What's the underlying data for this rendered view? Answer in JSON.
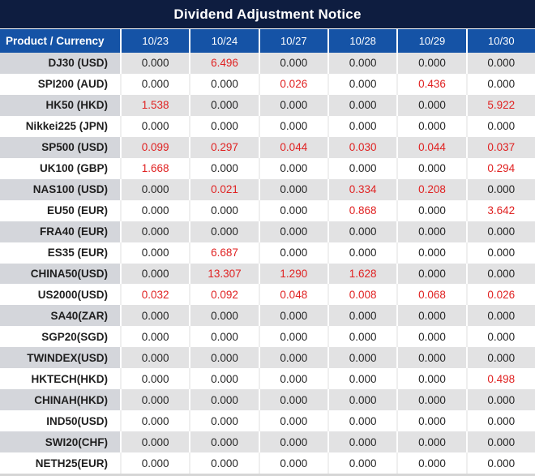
{
  "title": "Dividend Adjustment Notice",
  "colors": {
    "title_bg": "#0e1d40",
    "header_bg": "#1553a6",
    "row_alt_bg": "#e2e2e3",
    "row_alt_product_bg": "#d4d6db",
    "value_red": "#e02222",
    "text_color": "#262626",
    "header_text": "#ffffff"
  },
  "table": {
    "header": {
      "product_label": "Product / Currency",
      "dates": [
        "10/23",
        "10/24",
        "10/27",
        "10/28",
        "10/29",
        "10/30"
      ]
    },
    "rows": [
      {
        "product": "DJ30 (USD)",
        "values": [
          "0.000",
          "6.496",
          "0.000",
          "0.000",
          "0.000",
          "0.000"
        ],
        "red_indices": [
          1
        ]
      },
      {
        "product": "SPI200 (AUD)",
        "values": [
          "0.000",
          "0.000",
          "0.026",
          "0.000",
          "0.436",
          "0.000"
        ],
        "red_indices": [
          2,
          4
        ]
      },
      {
        "product": "HK50 (HKD)",
        "values": [
          "1.538",
          "0.000",
          "0.000",
          "0.000",
          "0.000",
          "5.922"
        ],
        "red_indices": [
          0,
          5
        ]
      },
      {
        "product": "Nikkei225 (JPN)",
        "values": [
          "0.000",
          "0.000",
          "0.000",
          "0.000",
          "0.000",
          "0.000"
        ],
        "red_indices": []
      },
      {
        "product": "SP500 (USD)",
        "values": [
          "0.099",
          "0.297",
          "0.044",
          "0.030",
          "0.044",
          "0.037"
        ],
        "red_indices": [
          0,
          1,
          2,
          3,
          4,
          5
        ]
      },
      {
        "product": "UK100 (GBP)",
        "values": [
          "1.668",
          "0.000",
          "0.000",
          "0.000",
          "0.000",
          "0.294"
        ],
        "red_indices": [
          0,
          5
        ]
      },
      {
        "product": "NAS100 (USD)",
        "values": [
          "0.000",
          "0.021",
          "0.000",
          "0.334",
          "0.208",
          "0.000"
        ],
        "red_indices": [
          1,
          3,
          4
        ]
      },
      {
        "product": "EU50 (EUR)",
        "values": [
          "0.000",
          "0.000",
          "0.000",
          "0.868",
          "0.000",
          "3.642"
        ],
        "red_indices": [
          3,
          5
        ]
      },
      {
        "product": "FRA40 (EUR)",
        "values": [
          "0.000",
          "0.000",
          "0.000",
          "0.000",
          "0.000",
          "0.000"
        ],
        "red_indices": []
      },
      {
        "product": "ES35 (EUR)",
        "values": [
          "0.000",
          "6.687",
          "0.000",
          "0.000",
          "0.000",
          "0.000"
        ],
        "red_indices": [
          1
        ]
      },
      {
        "product": "CHINA50(USD)",
        "values": [
          "0.000",
          "13.307",
          "1.290",
          "1.628",
          "0.000",
          "0.000"
        ],
        "red_indices": [
          1,
          2,
          3
        ]
      },
      {
        "product": "US2000(USD)",
        "values": [
          "0.032",
          "0.092",
          "0.048",
          "0.008",
          "0.068",
          "0.026"
        ],
        "red_indices": [
          0,
          1,
          2,
          3,
          4,
          5
        ]
      },
      {
        "product": "SA40(ZAR)",
        "values": [
          "0.000",
          "0.000",
          "0.000",
          "0.000",
          "0.000",
          "0.000"
        ],
        "red_indices": []
      },
      {
        "product": "SGP20(SGD)",
        "values": [
          "0.000",
          "0.000",
          "0.000",
          "0.000",
          "0.000",
          "0.000"
        ],
        "red_indices": []
      },
      {
        "product": "TWINDEX(USD)",
        "values": [
          "0.000",
          "0.000",
          "0.000",
          "0.000",
          "0.000",
          "0.000"
        ],
        "red_indices": []
      },
      {
        "product": "HKTECH(HKD)",
        "values": [
          "0.000",
          "0.000",
          "0.000",
          "0.000",
          "0.000",
          "0.498"
        ],
        "red_indices": [
          5
        ]
      },
      {
        "product": "CHINAH(HKD)",
        "values": [
          "0.000",
          "0.000",
          "0.000",
          "0.000",
          "0.000",
          "0.000"
        ],
        "red_indices": []
      },
      {
        "product": "IND50(USD)",
        "values": [
          "0.000",
          "0.000",
          "0.000",
          "0.000",
          "0.000",
          "0.000"
        ],
        "red_indices": []
      },
      {
        "product": "SWI20(CHF)",
        "values": [
          "0.000",
          "0.000",
          "0.000",
          "0.000",
          "0.000",
          "0.000"
        ],
        "red_indices": []
      },
      {
        "product": "NETH25(EUR)",
        "values": [
          "0.000",
          "0.000",
          "0.000",
          "0.000",
          "0.000",
          "0.000"
        ],
        "red_indices": []
      }
    ]
  }
}
